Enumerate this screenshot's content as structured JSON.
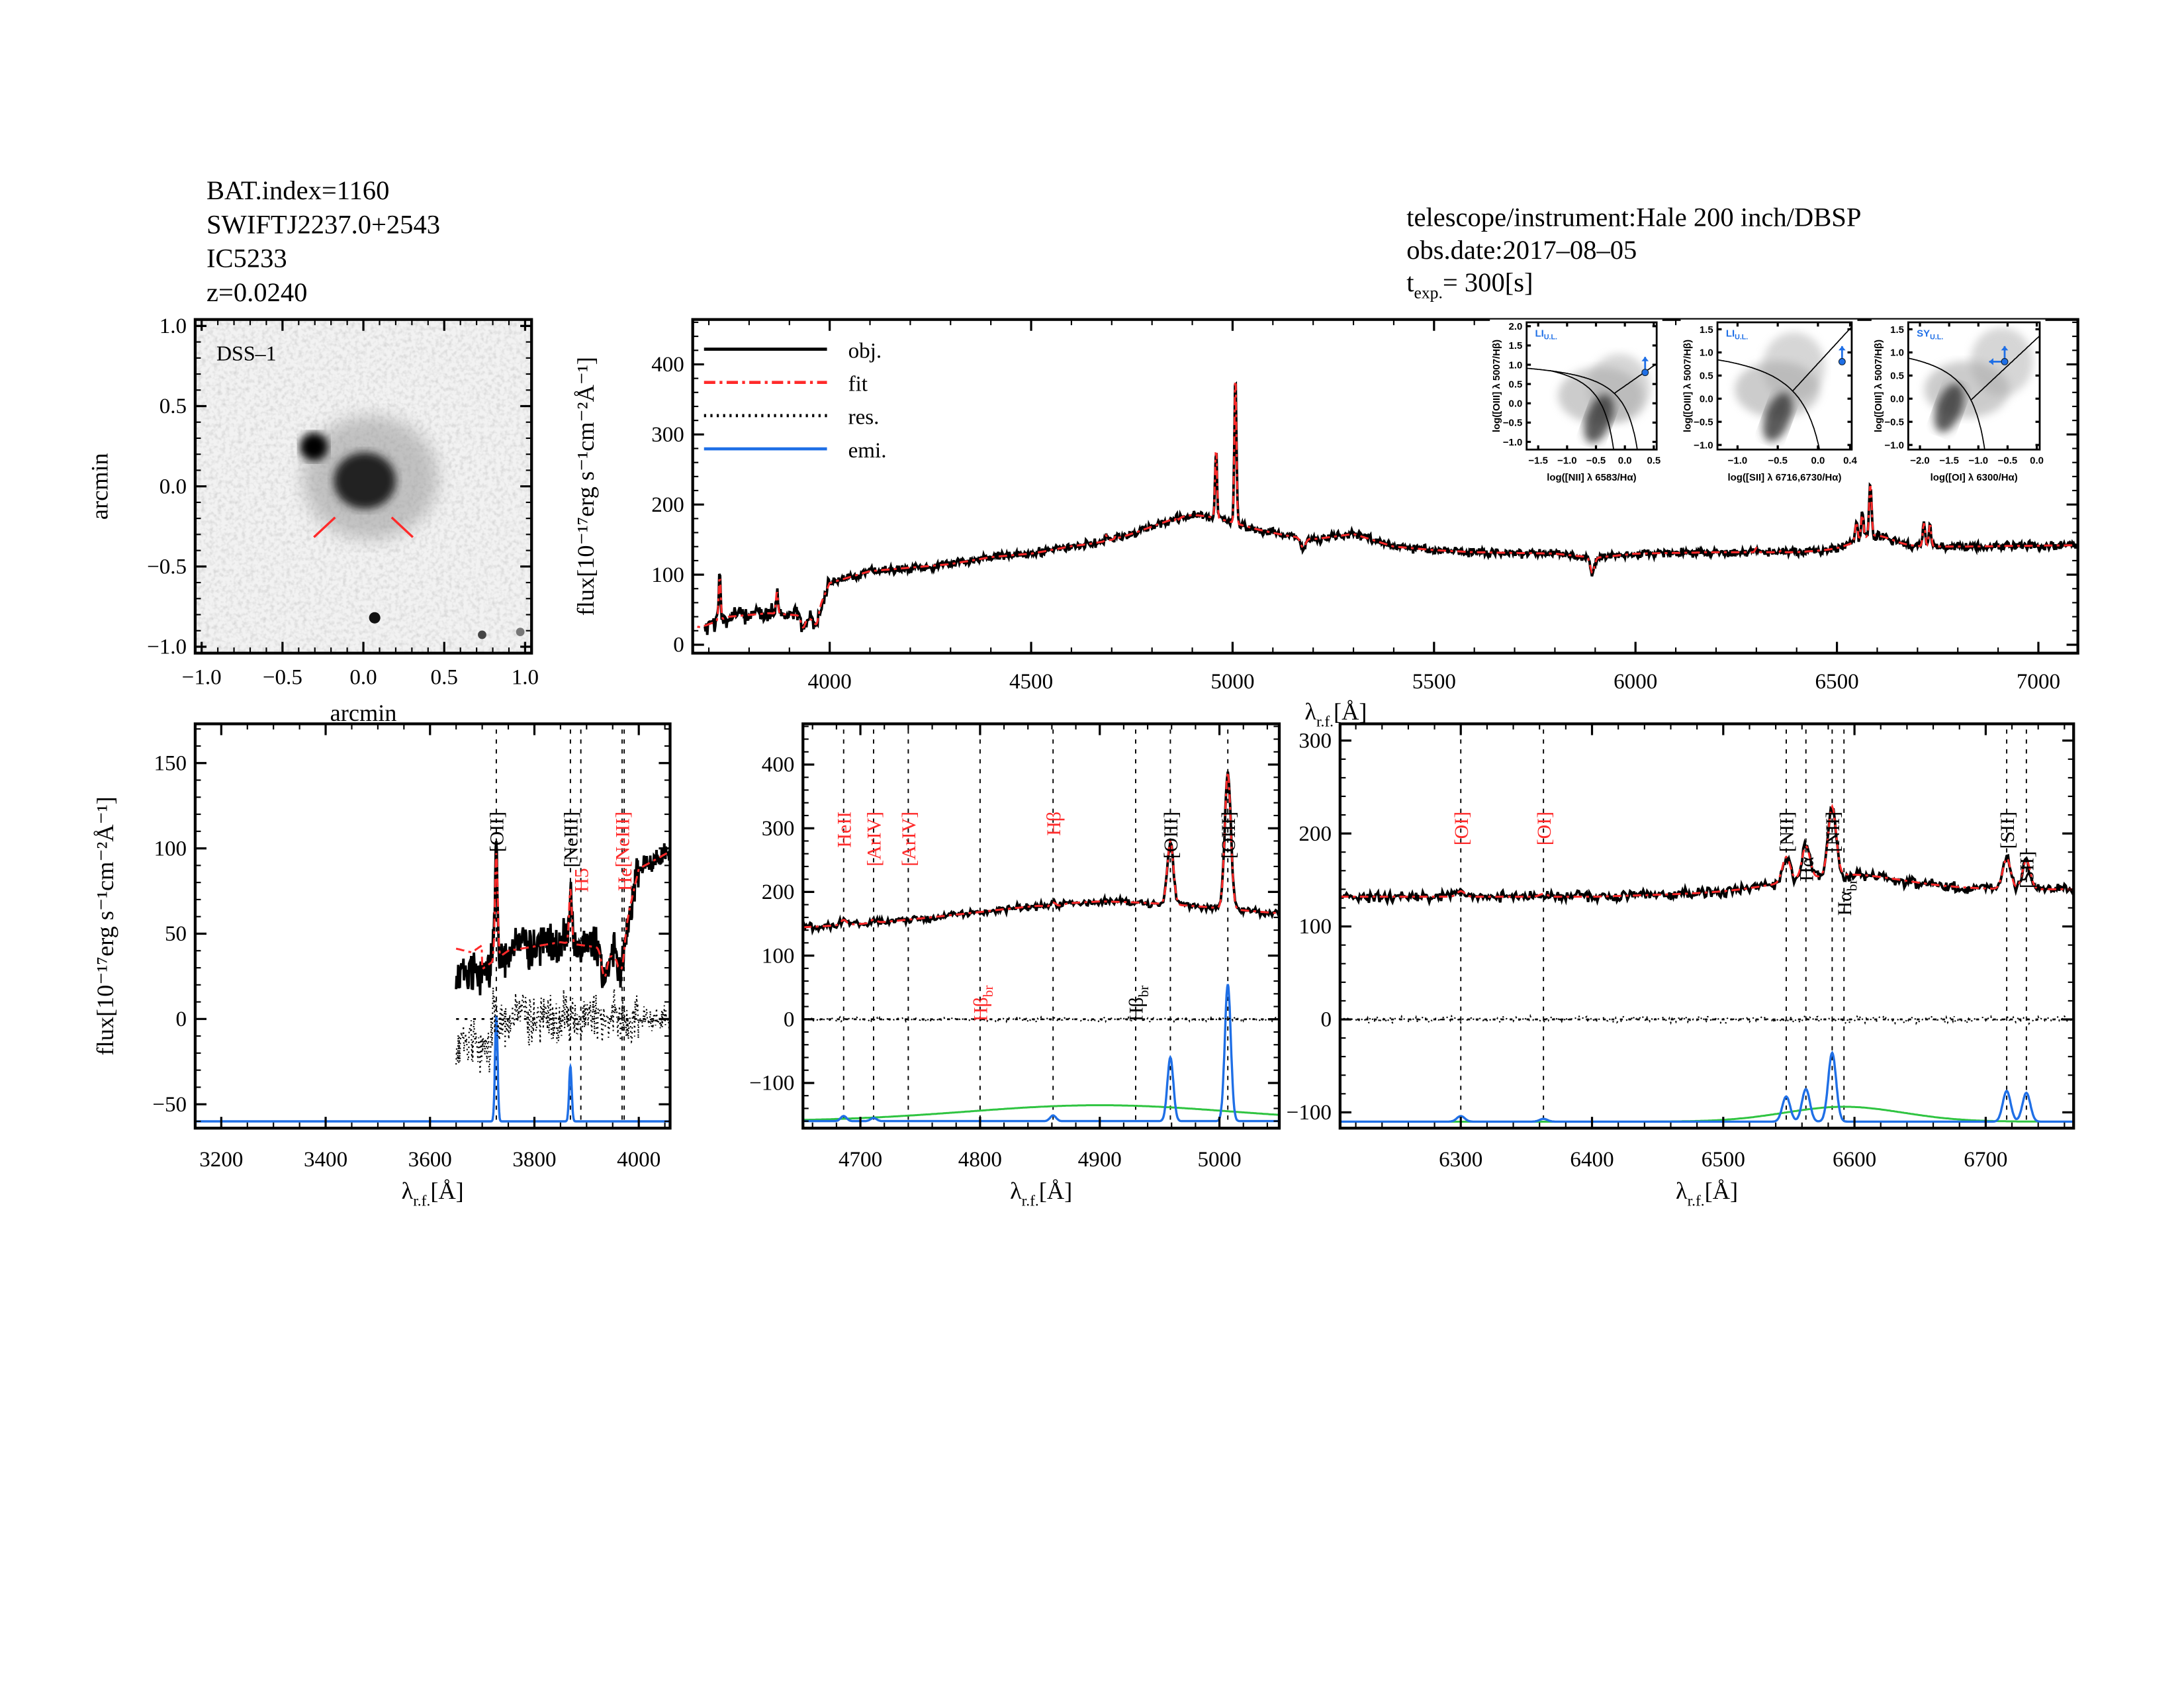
{
  "header_left": {
    "bat_index": "BAT.index=1160",
    "swift_name": "SWIFTJ2237.0+2543",
    "galaxy": "IC5233",
    "redshift": "z=0.0240"
  },
  "header_right": {
    "telescope": "telescope/instrument:Hale 200 inch/DBSP",
    "obs_date": "obs.date:2017–08–05",
    "texp_t": "t",
    "texp_sub": "exp.",
    "texp_value": "=  300[s]"
  },
  "labels": {
    "flux": "flux[10⁻¹⁷erg s⁻¹cm⁻²Å⁻¹]",
    "lambda": "λ",
    "lambda_sub": "r.f.",
    "lambda_unit": "[Å]",
    "arcmin": "arcmin",
    "survey": "DSS–1"
  },
  "legend": [
    {
      "label": "obj.",
      "color": "#000000",
      "style": "solid"
    },
    {
      "label": "fit",
      "color": "#ff2a2a",
      "style": "dashdot"
    },
    {
      "label": "res.",
      "color": "#000000",
      "style": "dotted"
    },
    {
      "label": "emi.",
      "color": "#1f6fe6",
      "style": "solid"
    }
  ],
  "colors": {
    "obj": "#000000",
    "fit": "#ff2a2a",
    "emi": "#1f6fe6",
    "broad": "#2fc441",
    "marker_red": "#ff2a2a",
    "bpt_point": "#1f6fe6"
  },
  "chart_data": [
    {
      "id": "image",
      "type": "image",
      "title": "DSS–1",
      "xlabel": "arcmin",
      "ylabel": "arcmin",
      "xlim": [
        -1.0,
        1.0
      ],
      "ylim": [
        -1.0,
        1.0
      ],
      "xticks": [
        -1.0,
        -0.5,
        0.0,
        0.5,
        1.0
      ],
      "yticks": [
        -1.0,
        -0.5,
        0.0,
        0.5,
        1.0
      ],
      "tick_labels": [
        "−1.0",
        "−0.5",
        "0.0",
        "0.5",
        "1.0"
      ]
    },
    {
      "id": "full_spectrum",
      "type": "line",
      "xlabel": "λ r.f. [Å]",
      "ylabel": "flux[10⁻¹⁷erg s⁻¹cm⁻²Å⁻¹]",
      "xlim": [
        3660,
        7098
      ],
      "ylim": [
        -12,
        464
      ],
      "xticks": [
        4000,
        4500,
        5000,
        5500,
        6000,
        6500,
        7000
      ],
      "yticks": [
        0,
        100,
        200,
        300,
        400
      ],
      "continuum": [
        [
          3640,
          28
        ],
        [
          3680,
          25
        ],
        [
          3750,
          40
        ],
        [
          3850,
          45
        ],
        [
          3920,
          42
        ],
        [
          3960,
          35
        ],
        [
          4000,
          88
        ],
        [
          4100,
          105
        ],
        [
          4200,
          110
        ],
        [
          4300,
          115
        ],
        [
          4400,
          125
        ],
        [
          4500,
          130
        ],
        [
          4600,
          140
        ],
        [
          4700,
          145
        ],
        [
          4800,
          152
        ],
        [
          4900,
          160
        ],
        [
          5000,
          158
        ],
        [
          5100,
          155
        ],
        [
          5200,
          150
        ],
        [
          5300,
          158
        ],
        [
          5400,
          140
        ],
        [
          5500,
          135
        ],
        [
          5600,
          132
        ],
        [
          5800,
          130
        ],
        [
          5900,
          124
        ],
        [
          6000,
          130
        ],
        [
          6200,
          132
        ],
        [
          6400,
          132
        ],
        [
          6500,
          136
        ],
        [
          6600,
          140
        ],
        [
          6800,
          140
        ],
        [
          7100,
          142
        ]
      ],
      "absorption": [
        [
          3934,
          -15,
          5
        ],
        [
          3968,
          -15,
          5
        ],
        [
          4861,
          -6,
          5
        ],
        [
          5175,
          -14,
          6
        ],
        [
          5893,
          -22,
          5
        ]
      ],
      "emission_lines": [
        {
          "name": "[OII]",
          "wave": 3727,
          "amp": 62,
          "sigma": 2.5
        },
        {
          "name": "[NeIII]",
          "wave": 3869,
          "amp": 32,
          "sigma": 2.5
        },
        {
          "name": "HeII",
          "wave": 4686,
          "amp": 8,
          "sigma": 2.5
        },
        {
          "name": "[ArIV]",
          "wave": 4711,
          "amp": 5,
          "sigma": 2.5
        },
        {
          "name": "Hβ",
          "wave": 4861,
          "amp": 9,
          "sigma": 2.5
        },
        {
          "name": "[OIII]",
          "wave": 4959,
          "amp": 100,
          "sigma": 2.5
        },
        {
          "name": "[OIII]",
          "wave": 5007,
          "amp": 215,
          "sigma": 2.5
        },
        {
          "name": "[OI]",
          "wave": 6300,
          "amp": 6,
          "sigma": 3
        },
        {
          "name": "[OI]",
          "wave": 6363,
          "amp": 3,
          "sigma": 3
        },
        {
          "name": "[NII]",
          "wave": 6548,
          "amp": 27,
          "sigma": 3
        },
        {
          "name": "Hα",
          "wave": 6563,
          "amp": 35,
          "sigma": 3
        },
        {
          "name": "[NII]",
          "wave": 6583,
          "amp": 74,
          "sigma": 3
        },
        {
          "name": "[SII]",
          "wave": 6716,
          "amp": 33,
          "sigma": 3
        },
        {
          "name": "[SII]",
          "wave": 6731,
          "amp": 31,
          "sigma": 3
        }
      ],
      "broad_lines": [
        {
          "name": "Hβ br",
          "wave": 4900,
          "amp": 25,
          "sigma": 110
        },
        {
          "name": "Hα br",
          "wave": 6592,
          "amp": 16,
          "sigma": 45
        }
      ],
      "inset_bpt": [
        {
          "title": "LI",
          "title_sub": "U.L.",
          "xlabel": "log([NII] λ 6583/Hα)",
          "ylabel": "log([OIII] λ 5007/Hβ)",
          "xlim": [
            -1.7,
            0.55
          ],
          "ylim": [
            -1.2,
            2.1
          ],
          "xticks": [
            -1.5,
            -1.0,
            -0.5,
            0.0,
            0.5
          ],
          "xtick_labels": [
            "−1.5",
            "−1.0",
            "−0.5",
            "0.0",
            "0.5"
          ],
          "yticks": [
            -1.0,
            -0.5,
            0.0,
            0.5,
            1.0,
            1.5,
            2.0
          ],
          "ytick_labels": [
            "−1.0",
            "−0.5",
            "0.0",
            "0.5",
            "1.0",
            "1.5",
            "2.0"
          ],
          "point": [
            0.35,
            0.8
          ],
          "arrows": [
            "up"
          ]
        },
        {
          "title": "LI",
          "title_sub": "U.L.",
          "xlabel": "log([SII] λ 6716,6730/Hα)",
          "ylabel": "log([OIII] λ 5007/Hβ)",
          "xlim": [
            -1.25,
            0.42
          ],
          "ylim": [
            -1.1,
            1.65
          ],
          "xticks": [
            -1.0,
            -0.5,
            0.0,
            0.4
          ],
          "xtick_labels": [
            "−1.0",
            "−0.5",
            "0.0",
            "0.4"
          ],
          "yticks": [
            -1.0,
            -0.5,
            0.0,
            0.5,
            1.0,
            1.5
          ],
          "ytick_labels": [
            "−1.0",
            "−0.5",
            "0.0",
            "0.5",
            "1.0",
            "1.5"
          ],
          "point": [
            0.3,
            0.8
          ],
          "arrows": [
            "up"
          ]
        },
        {
          "title": "SY",
          "title_sub": "U.L.",
          "xlabel": "log([OI] λ 6300/Hα)",
          "ylabel": "log([OIII] λ 5007/Hβ)",
          "xlim": [
            -2.2,
            0.05
          ],
          "ylim": [
            -1.1,
            1.65
          ],
          "xticks": [
            -2.0,
            -1.5,
            -1.0,
            -0.5,
            0.0
          ],
          "xtick_labels": [
            "−2.0",
            "−1.5",
            "−1.0",
            "−0.5",
            "0.0"
          ],
          "yticks": [
            -1.0,
            -0.5,
            0.0,
            0.5,
            1.0,
            1.5
          ],
          "ytick_labels": [
            "−1.0",
            "−0.5",
            "0.0",
            "0.5",
            "1.0",
            "1.5"
          ],
          "point": [
            -0.55,
            0.8
          ],
          "arrows": [
            "up",
            "left"
          ]
        }
      ]
    },
    {
      "id": "zoom_blue",
      "type": "line",
      "xlim": [
        3150,
        4060
      ],
      "ylim": [
        -64,
        173
      ],
      "xticks": [
        3200,
        3400,
        3600,
        3800,
        4000
      ],
      "yticks": [
        -50,
        0,
        50,
        100,
        150
      ],
      "data_start": 3650,
      "emi_baseline": -60,
      "markers": [
        {
          "label": "[OII]",
          "wave": 3727,
          "color": "black",
          "pos": "top"
        },
        {
          "label": "[NeIII]",
          "wave": 3869,
          "color": "black",
          "pos": "top"
        },
        {
          "label": "H5",
          "wave": 3889,
          "color": "red",
          "pos": "mid"
        },
        {
          "label": "[NeIII]",
          "wave": 3968,
          "color": "red",
          "pos": "top"
        },
        {
          "label": "He",
          "wave": 3972,
          "color": "red",
          "pos": "mid"
        }
      ]
    },
    {
      "id": "zoom_hbeta",
      "type": "line",
      "xlim": [
        4652,
        5050
      ],
      "ylim": [
        -171,
        464
      ],
      "xticks": [
        4700,
        4800,
        4900,
        5000
      ],
      "yticks": [
        -100,
        0,
        100,
        200,
        300,
        400
      ],
      "emi_baseline": -160,
      "markers": [
        {
          "label": "HeII",
          "wave": 4686,
          "color": "red",
          "pos": "top"
        },
        {
          "label": "[ArIV]",
          "wave": 4711,
          "color": "red",
          "pos": "top"
        },
        {
          "label": "[ArIV]",
          "wave": 4740,
          "color": "red",
          "pos": "top"
        },
        {
          "label": "Hβ",
          "sub": "br",
          "wave": 4800,
          "color": "red",
          "pos": "low"
        },
        {
          "label": "Hβ",
          "wave": 4861,
          "color": "red",
          "pos": "top"
        },
        {
          "label": "Hβ",
          "sub": "br",
          "wave": 4930,
          "color": "black",
          "pos": "low"
        },
        {
          "label": "[OIII]",
          "wave": 4959,
          "color": "black",
          "pos": "top"
        },
        {
          "label": "[OIII]",
          "wave": 5007,
          "color": "black",
          "pos": "top"
        }
      ]
    },
    {
      "id": "zoom_halpha",
      "type": "line",
      "xlim": [
        6208,
        6767
      ],
      "ylim": [
        -117,
        318
      ],
      "xticks": [
        6300,
        6400,
        6500,
        6600,
        6700
      ],
      "yticks": [
        -100,
        0,
        100,
        200,
        300
      ],
      "emi_baseline": -110,
      "markers": [
        {
          "label": "[OI]",
          "wave": 6300,
          "color": "red",
          "pos": "top"
        },
        {
          "label": "[OI]",
          "wave": 6363,
          "color": "red",
          "pos": "top"
        },
        {
          "label": "[NII]",
          "wave": 6548,
          "color": "black",
          "pos": "top"
        },
        {
          "label": "Hα",
          "wave": 6563,
          "color": "black",
          "pos": "top2"
        },
        {
          "label": "[NII]",
          "wave": 6583,
          "color": "black",
          "pos": "top"
        },
        {
          "label": "Hα",
          "sub": "br",
          "wave": 6592,
          "color": "black",
          "pos": "top3"
        },
        {
          "label": "[SII]",
          "wave": 6716,
          "color": "black",
          "pos": "top"
        },
        {
          "label": "[SII]",
          "wave": 6731,
          "color": "black",
          "pos": "top"
        }
      ]
    }
  ]
}
